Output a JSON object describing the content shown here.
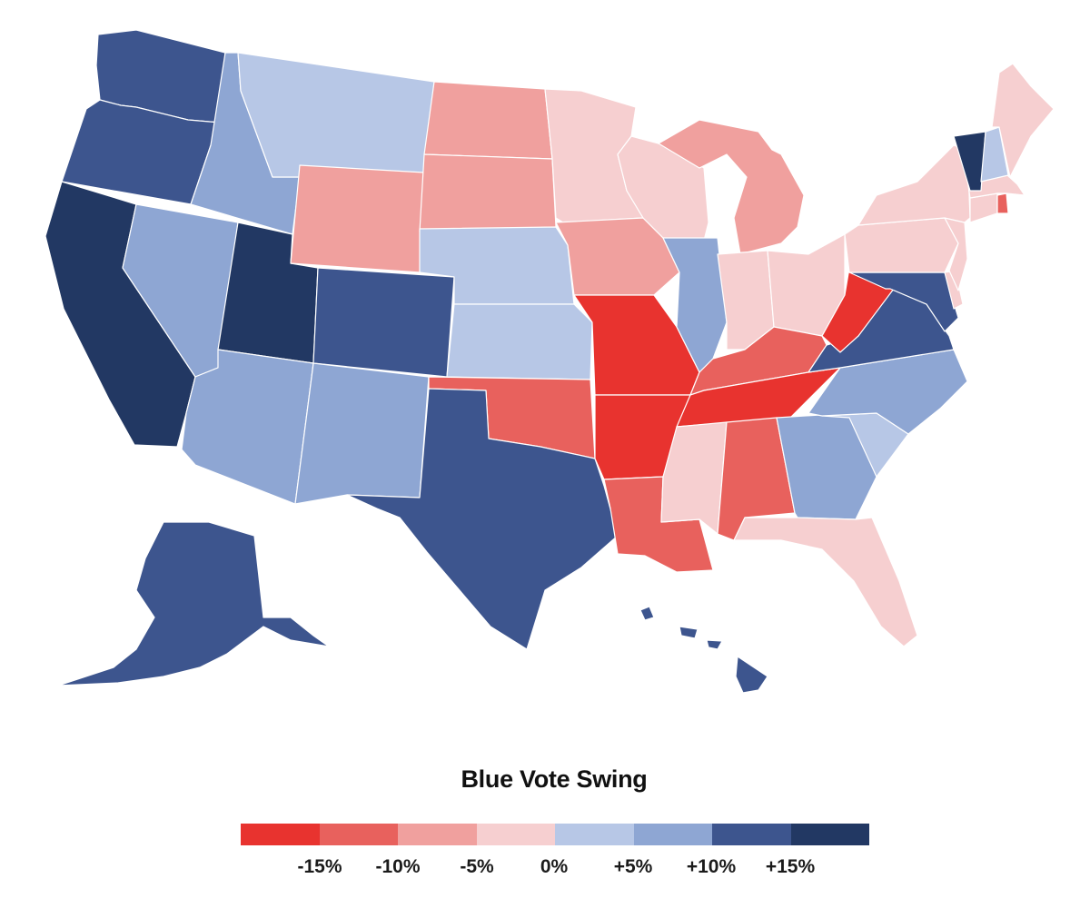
{
  "legend": {
    "title": "Blue Vote Swing",
    "swatches": [
      {
        "color": "#e8332f"
      },
      {
        "color": "#e8615d"
      },
      {
        "color": "#f0a09e"
      },
      {
        "color": "#f6cfd0"
      },
      {
        "color": "#b7c7e6"
      },
      {
        "color": "#8ea6d3"
      },
      {
        "color": "#3d558e"
      },
      {
        "color": "#223863"
      }
    ],
    "labels": [
      "-15%",
      "-10%",
      "-5%",
      "0%",
      "+5%",
      "+10%",
      "+15%"
    ]
  },
  "colors": {
    "strong_red": "#e8332f",
    "red": "#e8615d",
    "light_red": "#f0a09e",
    "pale_red": "#f6cfd0",
    "pale_blue": "#b7c7e6",
    "light_blue": "#8ea6d3",
    "blue": "#3d558e",
    "dark_blue": "#223863"
  },
  "states": [
    {
      "abbr": "WA",
      "color": "#3d558e"
    },
    {
      "abbr": "OR",
      "color": "#3d558e"
    },
    {
      "abbr": "CA",
      "color": "#223863"
    },
    {
      "abbr": "ID",
      "color": "#8ea6d3"
    },
    {
      "abbr": "NV",
      "color": "#8ea6d3"
    },
    {
      "abbr": "UT",
      "color": "#223863"
    },
    {
      "abbr": "AZ",
      "color": "#8ea6d3"
    },
    {
      "abbr": "MT",
      "color": "#b7c7e6"
    },
    {
      "abbr": "WY",
      "color": "#f0a09e"
    },
    {
      "abbr": "CO",
      "color": "#3d558e"
    },
    {
      "abbr": "NM",
      "color": "#8ea6d3"
    },
    {
      "abbr": "ND",
      "color": "#f0a09e"
    },
    {
      "abbr": "SD",
      "color": "#f0a09e"
    },
    {
      "abbr": "NE",
      "color": "#b7c7e6"
    },
    {
      "abbr": "KS",
      "color": "#b7c7e6"
    },
    {
      "abbr": "OK",
      "color": "#e8615d"
    },
    {
      "abbr": "TX",
      "color": "#3d558e"
    },
    {
      "abbr": "MN",
      "color": "#f6cfd0"
    },
    {
      "abbr": "IA",
      "color": "#f0a09e"
    },
    {
      "abbr": "MO",
      "color": "#e8332f"
    },
    {
      "abbr": "AR",
      "color": "#e8332f"
    },
    {
      "abbr": "LA",
      "color": "#e8615d"
    },
    {
      "abbr": "WI",
      "color": "#f6cfd0"
    },
    {
      "abbr": "IL",
      "color": "#8ea6d3"
    },
    {
      "abbr": "MI",
      "color": "#f0a09e"
    },
    {
      "abbr": "IN",
      "color": "#f6cfd0"
    },
    {
      "abbr": "OH",
      "color": "#f6cfd0"
    },
    {
      "abbr": "KY",
      "color": "#e8615d"
    },
    {
      "abbr": "TN",
      "color": "#e8332f"
    },
    {
      "abbr": "MS",
      "color": "#f6cfd0"
    },
    {
      "abbr": "AL",
      "color": "#e8615d"
    },
    {
      "abbr": "GA",
      "color": "#8ea6d3"
    },
    {
      "abbr": "FL",
      "color": "#f6cfd0"
    },
    {
      "abbr": "SC",
      "color": "#b7c7e6"
    },
    {
      "abbr": "NC",
      "color": "#8ea6d3"
    },
    {
      "abbr": "VA",
      "color": "#3d558e"
    },
    {
      "abbr": "WV",
      "color": "#e8332f"
    },
    {
      "abbr": "MD",
      "color": "#3d558e"
    },
    {
      "abbr": "DE",
      "color": "#f6cfd0"
    },
    {
      "abbr": "PA",
      "color": "#f6cfd0"
    },
    {
      "abbr": "NJ",
      "color": "#f6cfd0"
    },
    {
      "abbr": "NY",
      "color": "#f6cfd0"
    },
    {
      "abbr": "CT",
      "color": "#f6cfd0"
    },
    {
      "abbr": "RI",
      "color": "#e8615d"
    },
    {
      "abbr": "MA",
      "color": "#f6cfd0"
    },
    {
      "abbr": "VT",
      "color": "#223863"
    },
    {
      "abbr": "NH",
      "color": "#b7c7e6"
    },
    {
      "abbr": "ME",
      "color": "#f6cfd0"
    },
    {
      "abbr": "AK",
      "color": "#3d558e"
    },
    {
      "abbr": "HI",
      "color": "#3d558e"
    }
  ]
}
